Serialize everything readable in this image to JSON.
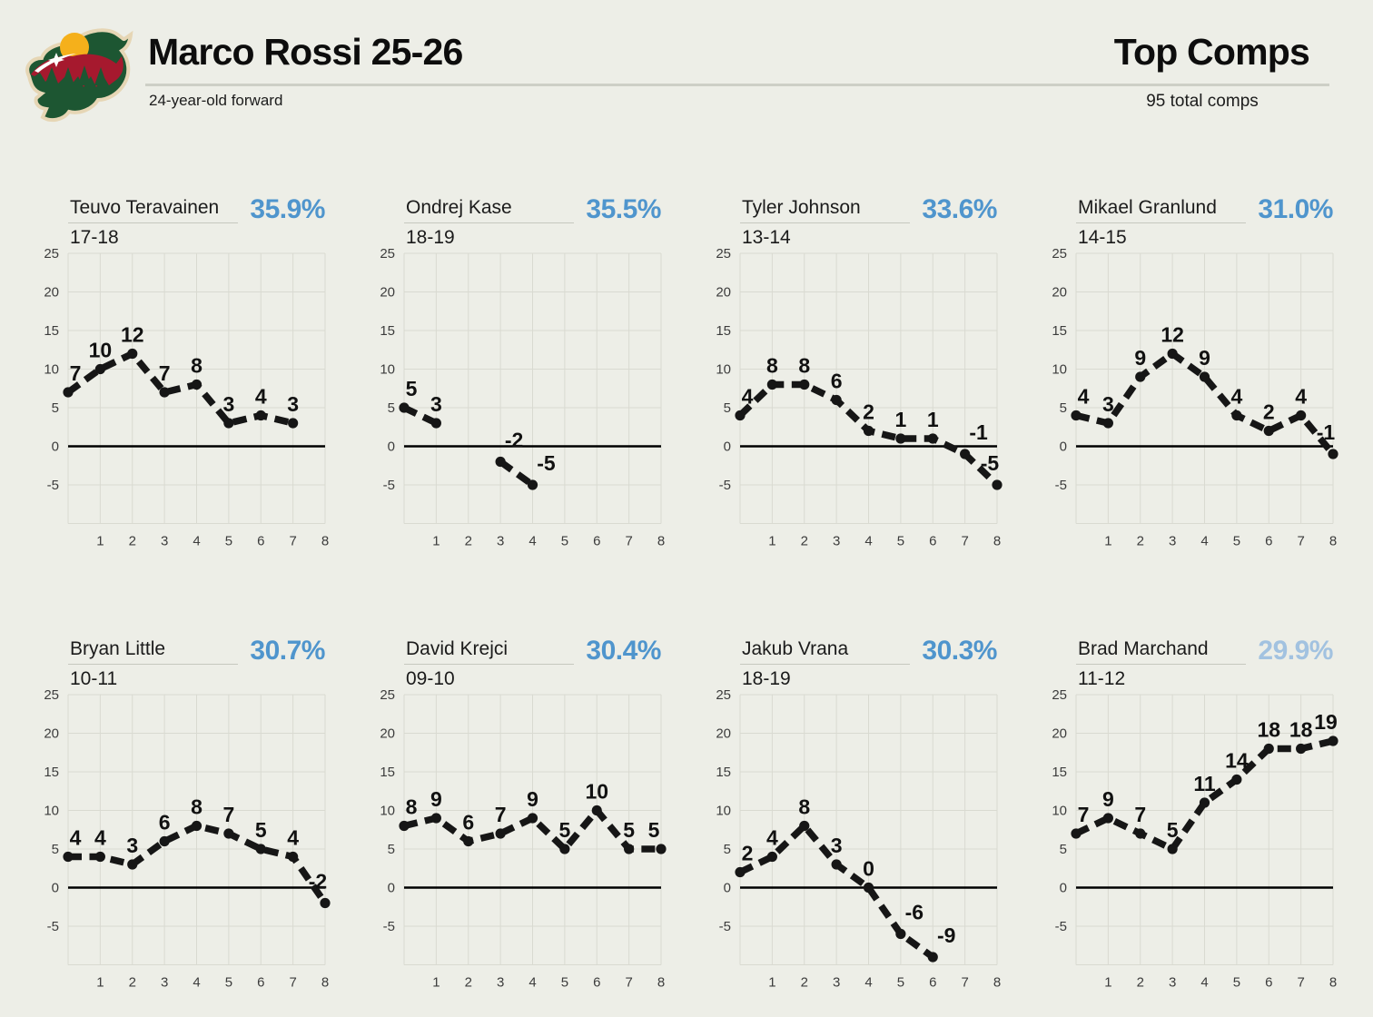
{
  "page": {
    "bg": "#edeee7",
    "accent_blue": "#4f95cd",
    "faded_blue": "#a2c2e0"
  },
  "header": {
    "title": "Marco Rossi 25-26",
    "subtitle": "24-year-old forward",
    "right_title": "Top Comps",
    "right_subtitle": "95 total comps",
    "logo": "minnesota-wild-logo"
  },
  "axes": {
    "xlim": [
      0,
      8
    ],
    "ylim": [
      -10,
      25
    ],
    "xticks": [
      1,
      2,
      3,
      4,
      5,
      6,
      7,
      8
    ],
    "yticks": [
      25,
      20,
      15,
      10,
      5,
      0,
      -5
    ],
    "grid": true
  },
  "chart_data": [
    {
      "type": "line",
      "player": "Teuvo Teravainen",
      "season": "17-18",
      "match_pct": "35.9%",
      "pct_color": "#4f95cd",
      "values": [
        7,
        10,
        12,
        7,
        8,
        3,
        4,
        3
      ]
    },
    {
      "type": "line",
      "player": "Ondrej Kase",
      "season": "18-19",
      "match_pct": "35.5%",
      "pct_color": "#4f95cd",
      "values": [
        5,
        3,
        null,
        -2,
        -5
      ]
    },
    {
      "type": "line",
      "player": "Tyler Johnson",
      "season": "13-14",
      "match_pct": "33.6%",
      "pct_color": "#4f95cd",
      "values": [
        4,
        8,
        8,
        6,
        2,
        1,
        1,
        -1,
        -5
      ]
    },
    {
      "type": "line",
      "player": "Mikael Granlund",
      "season": "14-15",
      "match_pct": "31.0%",
      "pct_color": "#4f95cd",
      "values": [
        4,
        3,
        9,
        12,
        9,
        4,
        2,
        4,
        -1
      ]
    },
    {
      "type": "line",
      "player": "Bryan Little",
      "season": "10-11",
      "match_pct": "30.7%",
      "pct_color": "#4f95cd",
      "values": [
        4,
        4,
        3,
        6,
        8,
        7,
        5,
        4,
        -2
      ]
    },
    {
      "type": "line",
      "player": "David Krejci",
      "season": "09-10",
      "match_pct": "30.4%",
      "pct_color": "#4f95cd",
      "values": [
        8,
        9,
        6,
        7,
        9,
        5,
        10,
        5,
        5
      ]
    },
    {
      "type": "line",
      "player": "Jakub Vrana",
      "season": "18-19",
      "match_pct": "30.3%",
      "pct_color": "#4f95cd",
      "values": [
        2,
        4,
        8,
        3,
        0,
        -6,
        -9
      ]
    },
    {
      "type": "line",
      "player": "Brad Marchand",
      "season": "11-12",
      "match_pct": "29.9%",
      "pct_color": "#a2c2e0",
      "values": [
        7,
        9,
        7,
        5,
        11,
        14,
        18,
        18,
        19
      ]
    }
  ]
}
